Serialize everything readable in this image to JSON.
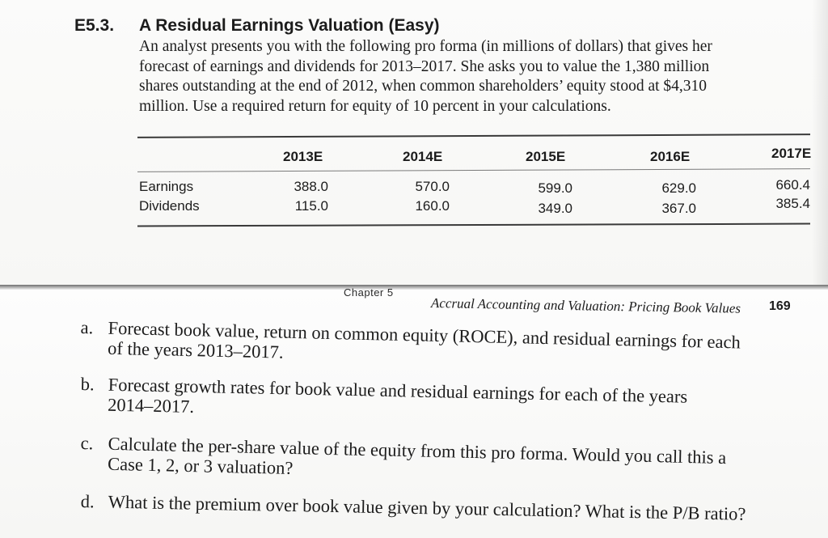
{
  "exercise": {
    "number": "E5.3.",
    "title": "A Residual Earnings Valuation (Easy)",
    "lines": [
      "An analyst presents you with the following pro forma (in millions of dollars) that gives her",
      "forecast of earnings and dividends for 2013–2017. She asks you to value the 1,380 million",
      "shares outstanding at the end of 2012, when common shareholders’ equity stood at $4,310",
      "million. Use a required return for equity of 10 percent in your calculations."
    ]
  },
  "table": {
    "columns": [
      "2013E",
      "2014E",
      "2015E",
      "2016E",
      "2017E"
    ],
    "rows": [
      {
        "label": "Earnings",
        "values": [
          "388.0",
          "570.0",
          "599.0",
          "629.0",
          "660.4"
        ]
      },
      {
        "label": "Dividends",
        "values": [
          "115.0",
          "160.0",
          "349.0",
          "367.0",
          "385.4"
        ]
      }
    ]
  },
  "footer": {
    "chapter": "Chapter 5",
    "running_title": "Accrual Accounting and Valuation: Pricing Book Values",
    "page_number": "169"
  },
  "questions": [
    {
      "marker": "a.",
      "lines": [
        "Forecast book value, return on common equity (ROCE), and residual earnings for each",
        "of the years 2013–2017."
      ]
    },
    {
      "marker": "b.",
      "lines": [
        "Forecast growth rates for book value and residual earnings for each of the years",
        "2014–2017."
      ]
    },
    {
      "marker": "c.",
      "lines": [
        "Calculate the per-share value of the equity from this pro forma. Would you call this a",
        "Case 1, 2, or 3 valuation?"
      ]
    },
    {
      "marker": "d.",
      "lines": [
        "What is the premium over book value given by your calculation? What is the P/B ratio?"
      ]
    }
  ]
}
